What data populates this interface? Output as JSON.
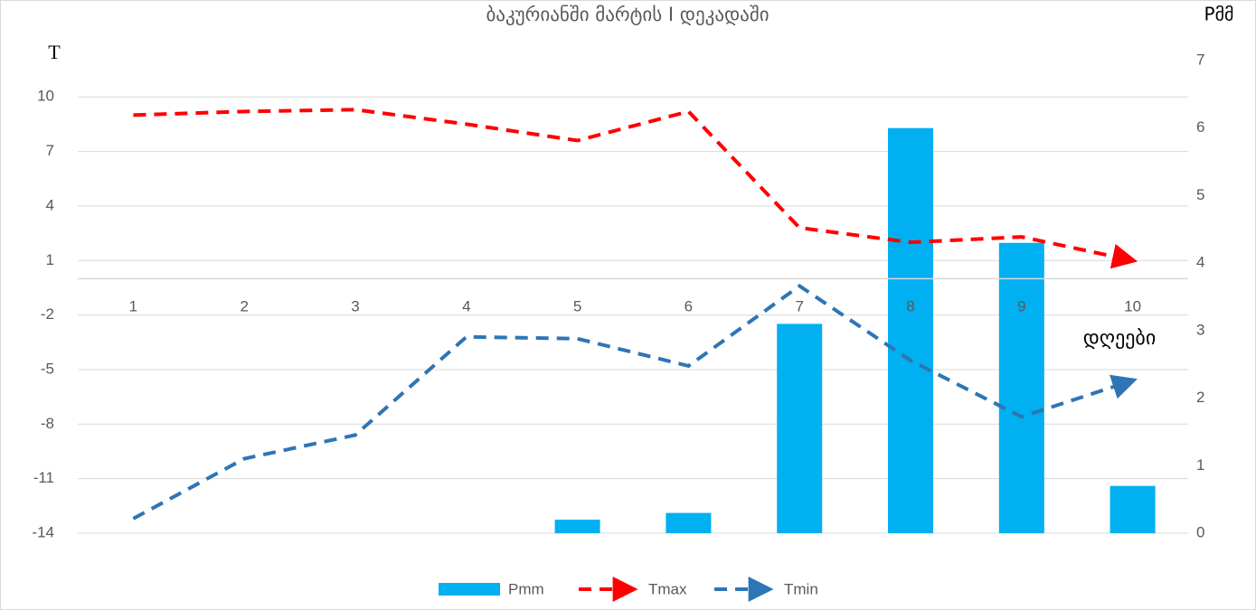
{
  "chart_data": {
    "type": "combo",
    "title": "ბაკურიანში მარტის I დეკადაში",
    "y_label": "T",
    "y2_label": "Pმმ",
    "x_label": "დღეები",
    "categories": [
      "1",
      "2",
      "3",
      "4",
      "5",
      "6",
      "7",
      "8",
      "9",
      "10"
    ],
    "ylim": [
      -14,
      12
    ],
    "yticks": [
      -14,
      -11,
      -8,
      -5,
      -2,
      1,
      4,
      7,
      10
    ],
    "y2lim": [
      0,
      7
    ],
    "y2ticks": [
      0,
      1,
      2,
      3,
      4,
      5,
      6,
      7
    ],
    "grid": true,
    "legend": "bottom",
    "series": [
      {
        "name": "Pmm",
        "type": "bar",
        "axis": "y2",
        "color": "#00b0f0",
        "values": [
          0,
          0,
          0,
          0,
          0.2,
          0.3,
          3.1,
          6.0,
          4.3,
          0.7
        ]
      },
      {
        "name": "Tmax",
        "type": "line",
        "color": "#ff0000",
        "values": [
          9.0,
          9.2,
          9.3,
          8.5,
          7.6,
          9.2,
          2.8,
          2.0,
          2.3,
          1.0
        ]
      },
      {
        "name": "Tmin",
        "type": "line",
        "color": "#2e75b6",
        "values": [
          -13.2,
          -9.9,
          -8.6,
          -3.2,
          -3.3,
          -4.8,
          -0.4,
          -4.5,
          -7.6,
          -5.6
        ]
      }
    ]
  }
}
